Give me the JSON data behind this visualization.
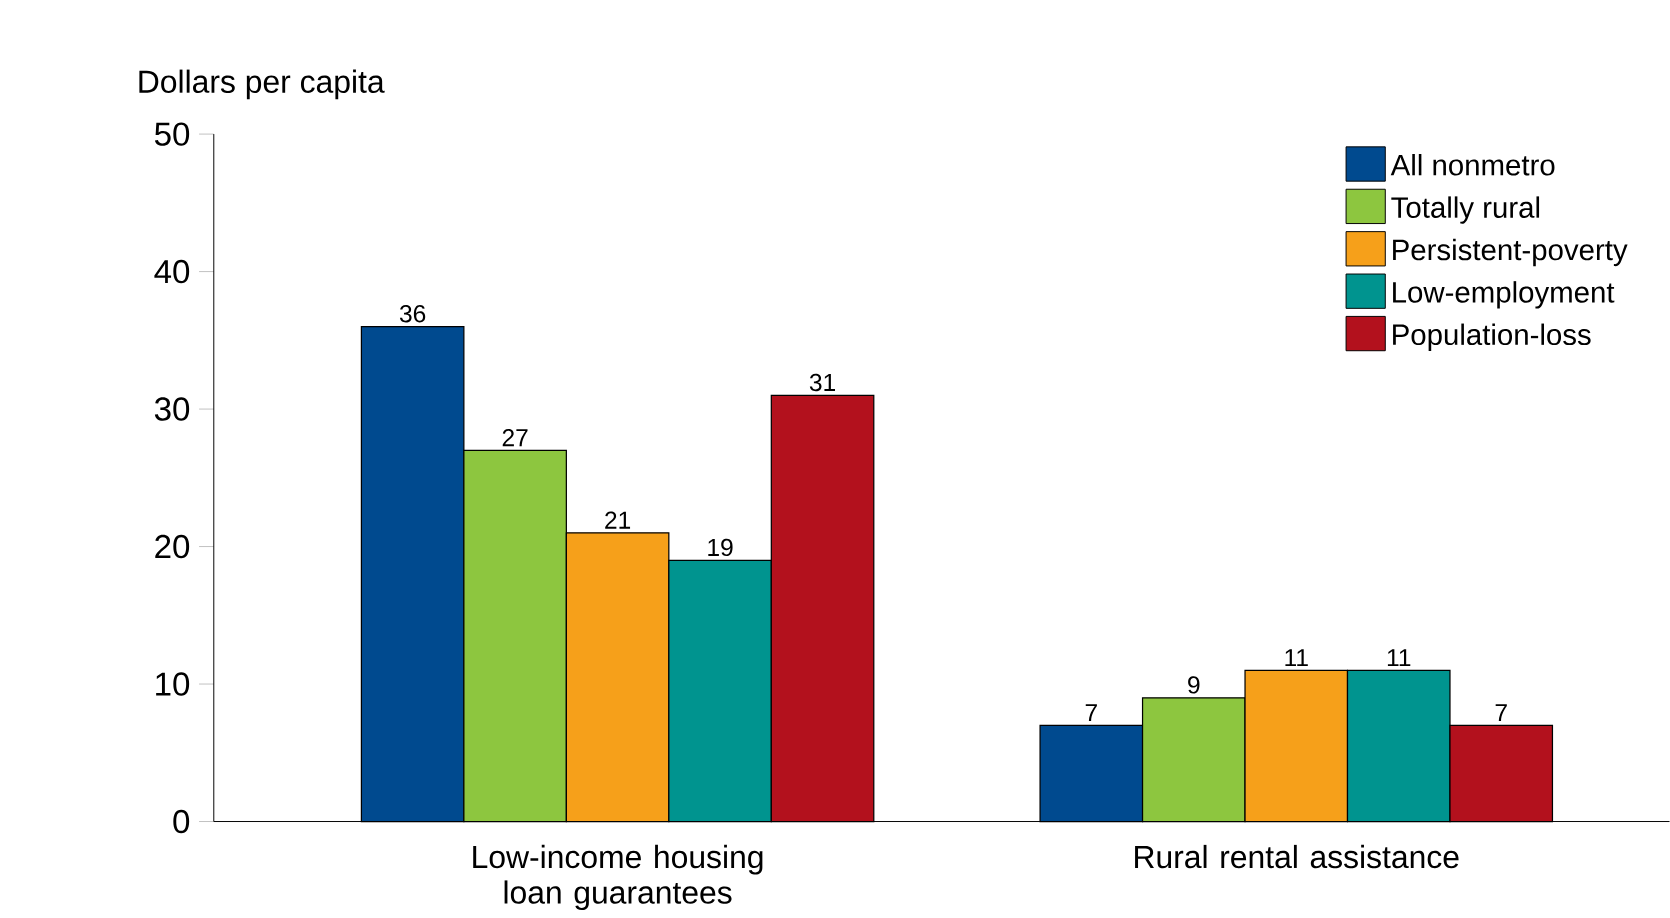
{
  "chart_data": {
    "type": "bar",
    "ylabel": "Dollars per capita",
    "categories": [
      "Low-income housing loan guarantees",
      "Rural rental assistance"
    ],
    "series": [
      {
        "name": "All nonmetro",
        "color": "#004a8f",
        "values": [
          36,
          7
        ]
      },
      {
        "name": "Totally rural",
        "color": "#8dc63f",
        "values": [
          27,
          9
        ]
      },
      {
        "name": "Persistent-poverty",
        "color": "#f6a01a",
        "values": [
          21,
          11
        ]
      },
      {
        "name": "Low-employment",
        "color": "#00948f",
        "values": [
          19,
          11
        ]
      },
      {
        "name": "Population-loss",
        "color": "#b3111d",
        "values": [
          31,
          7
        ]
      }
    ],
    "ylim": [
      0,
      50
    ],
    "yticks": [
      0,
      10,
      20,
      30,
      40,
      50
    ],
    "data_labels": true,
    "legend": "top right",
    "grid": false
  }
}
